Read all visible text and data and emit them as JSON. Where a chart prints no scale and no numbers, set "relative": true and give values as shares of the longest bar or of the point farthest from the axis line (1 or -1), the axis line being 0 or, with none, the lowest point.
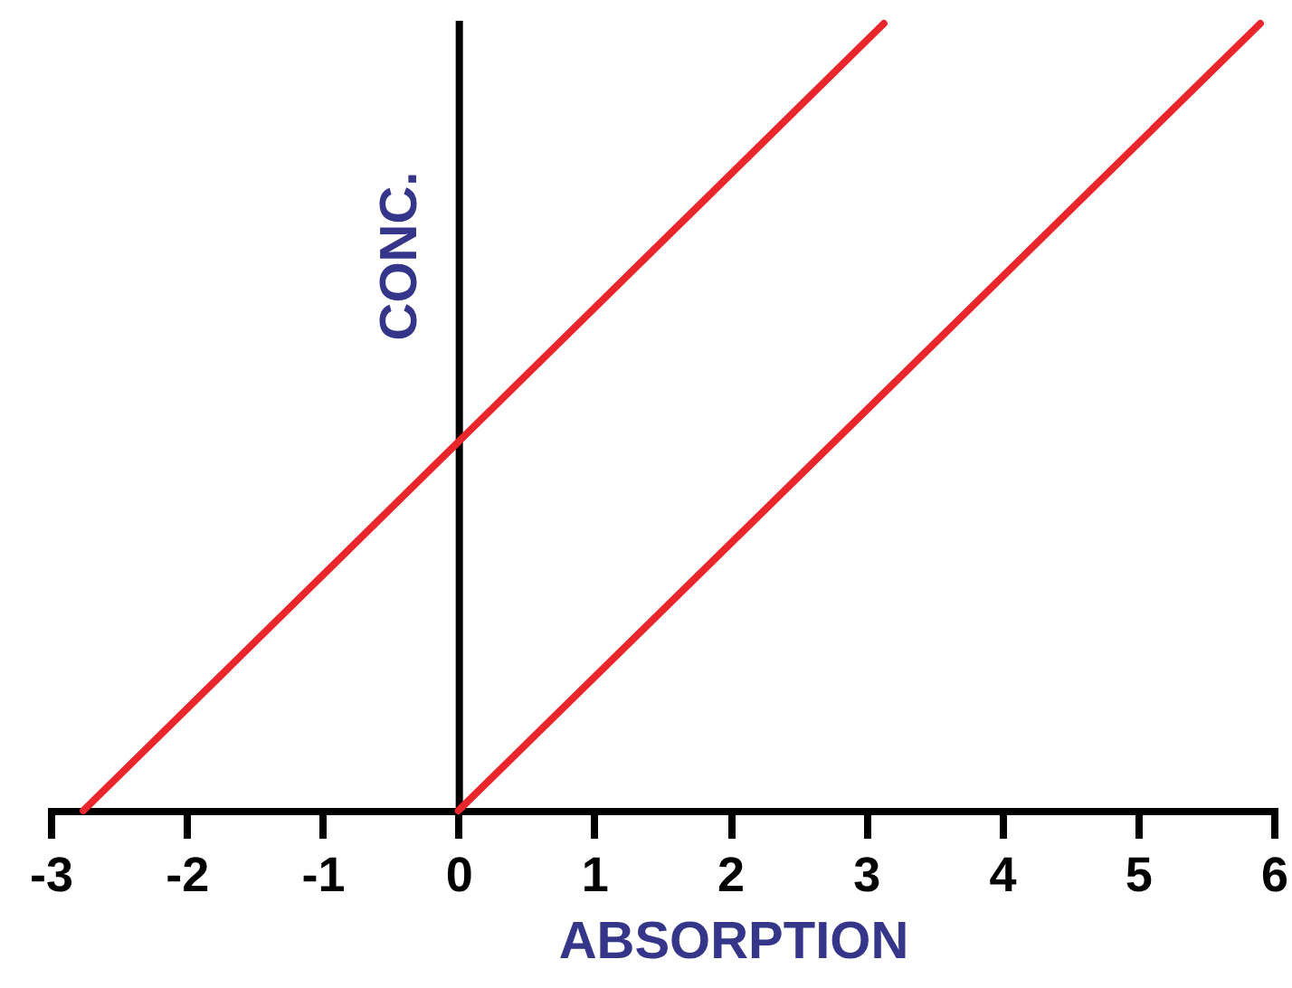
{
  "chart_data": {
    "type": "line",
    "xlabel": "ABSORPTION",
    "ylabel": "CONC.",
    "relative": true,
    "xlim": [
      -3,
      6
    ],
    "xticks": [
      -3,
      -2,
      -1,
      0,
      1,
      2,
      3,
      4,
      5,
      6
    ],
    "tick_labels": "x",
    "series": [
      {
        "color": "#e8262b",
        "x": [
          -2.76,
          3.13
        ],
        "values": [
          0,
          1
        ]
      },
      {
        "color": "#e8262b",
        "x": [
          0,
          5.9
        ],
        "values": [
          0,
          1
        ]
      }
    ]
  }
}
